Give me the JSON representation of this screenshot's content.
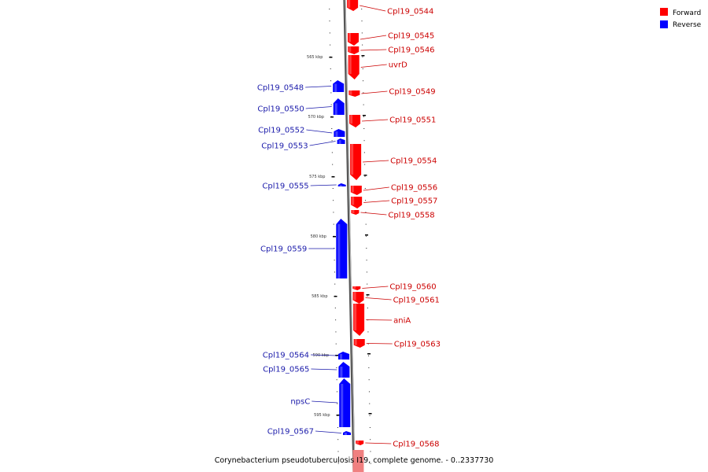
{
  "colors": {
    "forward": "#ff0000",
    "reverse": "#0000ff",
    "forward_label": "#cc0000",
    "reverse_label": "#1a1aaa",
    "backbone": "#888888"
  },
  "legend": {
    "forward_label": "Forward",
    "reverse_label": "Reverse"
  },
  "caption": "Corynebacterium pseudotuberculosis I19, complete genome. - 0..2337730",
  "scale_labels": [
    "565 kbp",
    "570 kbp",
    "575 kbp",
    "580 kbp",
    "585 kbp",
    "590 kbp",
    "595 kbp"
  ],
  "genes": [
    {
      "name": "Cpl19_0544",
      "strand": "forward"
    },
    {
      "name": "Cpl19_0545",
      "strand": "forward"
    },
    {
      "name": "Cpl19_0546",
      "strand": "forward"
    },
    {
      "name": "uvrD",
      "strand": "forward"
    },
    {
      "name": "Cpl19_0548",
      "strand": "reverse"
    },
    {
      "name": "Cpl19_0549",
      "strand": "forward"
    },
    {
      "name": "Cpl19_0550",
      "strand": "reverse"
    },
    {
      "name": "Cpl19_0551",
      "strand": "forward"
    },
    {
      "name": "Cpl19_0552",
      "strand": "reverse"
    },
    {
      "name": "Cpl19_0553",
      "strand": "reverse"
    },
    {
      "name": "Cpl19_0554",
      "strand": "forward"
    },
    {
      "name": "Cpl19_0555",
      "strand": "reverse"
    },
    {
      "name": "Cpl19_0556",
      "strand": "forward"
    },
    {
      "name": "Cpl19_0557",
      "strand": "forward"
    },
    {
      "name": "Cpl19_0558",
      "strand": "forward"
    },
    {
      "name": "Cpl19_0559",
      "strand": "reverse"
    },
    {
      "name": "Cpl19_0560",
      "strand": "forward"
    },
    {
      "name": "Cpl19_0561",
      "strand": "forward"
    },
    {
      "name": "aniA",
      "strand": "forward"
    },
    {
      "name": "Cpl19_0563",
      "strand": "forward"
    },
    {
      "name": "Cpl19_0564",
      "strand": "reverse"
    },
    {
      "name": "Cpl19_0565",
      "strand": "reverse"
    },
    {
      "name": "npsC",
      "strand": "reverse"
    },
    {
      "name": "Cpl19_0567",
      "strand": "reverse"
    },
    {
      "name": "Cpl19_0568",
      "strand": "forward"
    }
  ]
}
